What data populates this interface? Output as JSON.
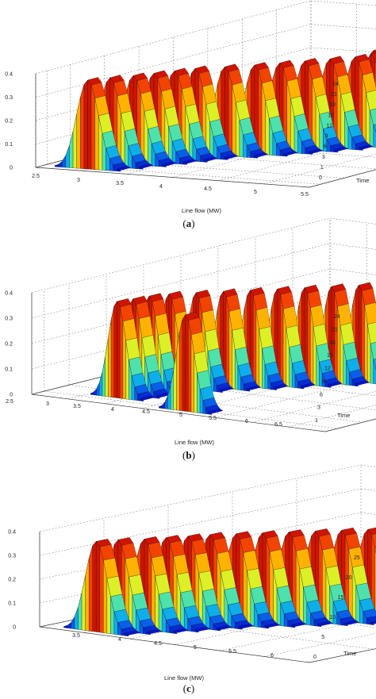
{
  "chart_data": [
    {
      "type": "surface-3d",
      "panel_label": "(a)",
      "panel_letter": "a",
      "xlabel": "Line flow (MW)",
      "ylabel": "Time",
      "zlabel": "",
      "xlim": [
        2.5,
        5.5
      ],
      "ylim": [
        0,
        24
      ],
      "zlim": [
        0,
        0.4
      ],
      "x_ticks": [
        "2.5",
        "3",
        "3.5",
        "4",
        "4.5",
        "5",
        "5.5"
      ],
      "y_ticks": [
        "0",
        "1",
        "3",
        "6",
        "9",
        "12",
        "15",
        "18",
        "21",
        "24"
      ],
      "z_ticks": [
        "0",
        "0.1",
        "0.2",
        "0.3",
        "0.4"
      ],
      "sigma": 0.12,
      "peaks": [
        {
          "time": 1,
          "mean": 3.0,
          "peak": 0.38
        },
        {
          "time": 2,
          "mean": 3.12,
          "peak": 0.38
        },
        {
          "time": 3,
          "mean": 3.25,
          "peak": 0.38
        },
        {
          "time": 4,
          "mean": 3.35,
          "peak": 0.38
        },
        {
          "time": 5,
          "mean": 3.45,
          "peak": 0.38
        },
        {
          "time": 6,
          "mean": 3.55,
          "peak": 0.38
        },
        {
          "time": 7,
          "mean": 3.75,
          "peak": 0.38
        },
        {
          "time": 8,
          "mean": 3.95,
          "peak": 0.38
        },
        {
          "time": 9,
          "mean": 4.1,
          "peak": 0.38
        },
        {
          "time": 10,
          "mean": 4.25,
          "peak": 0.38
        },
        {
          "time": 11,
          "mean": 4.4,
          "peak": 0.38
        },
        {
          "time": 12,
          "mean": 4.55,
          "peak": 0.38
        },
        {
          "time": 13,
          "mean": 4.6,
          "peak": 0.38
        },
        {
          "time": 14,
          "mean": 4.5,
          "peak": 0.38
        },
        {
          "time": 15,
          "mean": 4.7,
          "peak": 0.38
        },
        {
          "time": 16,
          "mean": 4.85,
          "peak": 0.38
        },
        {
          "time": 17,
          "mean": 4.95,
          "peak": 0.38
        },
        {
          "time": 18,
          "mean": 5.0,
          "peak": 0.38
        },
        {
          "time": 19,
          "mean": 5.1,
          "peak": 0.38
        },
        {
          "time": 20,
          "mean": 5.15,
          "peak": 0.38
        },
        {
          "time": 21,
          "mean": 5.0,
          "peak": 0.38
        },
        {
          "time": 22,
          "mean": 4.7,
          "peak": 0.38
        },
        {
          "time": 23,
          "mean": 4.3,
          "peak": 0.38
        },
        {
          "time": 24,
          "mean": 3.8,
          "peak": 0.38
        }
      ]
    },
    {
      "type": "surface-3d",
      "panel_label": "(b)",
      "panel_letter": "b",
      "xlabel": "Line flow (MW)",
      "ylabel": "Time",
      "zlabel": "",
      "xlim": [
        2.5,
        6.5
      ],
      "ylim": [
        0,
        24
      ],
      "zlim": [
        0,
        0.4
      ],
      "x_ticks": [
        "2.5",
        "3",
        "3.5",
        "4",
        "4.5",
        "5",
        "5.5",
        "6",
        "6.5"
      ],
      "y_ticks": [
        "1",
        "3",
        "6",
        "9",
        "12",
        "15",
        "18",
        "21",
        "24"
      ],
      "z_ticks": [
        "0",
        "0.1",
        "0.2",
        "0.3",
        "0.4"
      ],
      "sigma": 0.12,
      "peaks": [
        {
          "time": 1,
          "mean": 4.5,
          "peak": 0.38
        },
        {
          "time": 2,
          "mean": 3.4,
          "peak": 0.38
        },
        {
          "time": 3,
          "mean": 3.45,
          "peak": 0.38
        },
        {
          "time": 4,
          "mean": 3.5,
          "peak": 0.38
        },
        {
          "time": 5,
          "mean": 3.6,
          "peak": 0.38
        },
        {
          "time": 6,
          "mean": 3.8,
          "peak": 0.38
        },
        {
          "time": 7,
          "mean": 4.0,
          "peak": 0.38
        },
        {
          "time": 8,
          "mean": 4.2,
          "peak": 0.38
        },
        {
          "time": 9,
          "mean": 4.4,
          "peak": 0.38
        },
        {
          "time": 10,
          "mean": 4.6,
          "peak": 0.38
        },
        {
          "time": 11,
          "mean": 4.8,
          "peak": 0.38
        },
        {
          "time": 12,
          "mean": 5.0,
          "peak": 0.38
        },
        {
          "time": 13,
          "mean": 5.2,
          "peak": 0.38
        },
        {
          "time": 14,
          "mean": 5.4,
          "peak": 0.38
        },
        {
          "time": 15,
          "mean": 5.55,
          "peak": 0.38
        },
        {
          "time": 16,
          "mean": 5.7,
          "peak": 0.38
        },
        {
          "time": 17,
          "mean": 5.85,
          "peak": 0.38
        },
        {
          "time": 18,
          "mean": 6.0,
          "peak": 0.38
        },
        {
          "time": 19,
          "mean": 6.05,
          "peak": 0.38
        },
        {
          "time": 20,
          "mean": 6.1,
          "peak": 0.38
        },
        {
          "time": 21,
          "mean": 5.9,
          "peak": 0.38
        },
        {
          "time": 22,
          "mean": 5.6,
          "peak": 0.38
        },
        {
          "time": 23,
          "mean": 5.2,
          "peak": 0.38
        },
        {
          "time": 24,
          "mean": 4.6,
          "peak": 0.38
        }
      ]
    },
    {
      "type": "surface-3d",
      "panel_label": "(c)",
      "panel_letter": "c",
      "xlabel": "Line flow (MW)",
      "ylabel": "Time",
      "zlabel": "",
      "xlim": [
        3,
        6
      ],
      "ylim": [
        0,
        25
      ],
      "zlim": [
        0,
        0.4
      ],
      "x_ticks": [
        "3.5",
        "4",
        "4.5",
        "5",
        "5.5",
        "6"
      ],
      "y_ticks": [
        "0",
        "5",
        "10",
        "15",
        "20",
        "25"
      ],
      "z_ticks": [
        "0",
        "0.1",
        "0.2",
        "0.3",
        "0.4"
      ],
      "sigma": 0.12,
      "peaks": [
        {
          "time": 1,
          "mean": 3.55,
          "peak": 0.38
        },
        {
          "time": 2,
          "mean": 3.65,
          "peak": 0.38
        },
        {
          "time": 3,
          "mean": 3.8,
          "peak": 0.38
        },
        {
          "time": 4,
          "mean": 3.9,
          "peak": 0.38
        },
        {
          "time": 5,
          "mean": 4.0,
          "peak": 0.38
        },
        {
          "time": 6,
          "mean": 4.1,
          "peak": 0.38
        },
        {
          "time": 7,
          "mean": 4.25,
          "peak": 0.38
        },
        {
          "time": 8,
          "mean": 4.4,
          "peak": 0.38
        },
        {
          "time": 9,
          "mean": 4.55,
          "peak": 0.38
        },
        {
          "time": 10,
          "mean": 4.7,
          "peak": 0.38
        },
        {
          "time": 11,
          "mean": 4.85,
          "peak": 0.38
        },
        {
          "time": 12,
          "mean": 5.0,
          "peak": 0.38
        },
        {
          "time": 13,
          "mean": 5.15,
          "peak": 0.38
        },
        {
          "time": 14,
          "mean": 5.25,
          "peak": 0.38
        },
        {
          "time": 15,
          "mean": 5.2,
          "peak": 0.38
        },
        {
          "time": 16,
          "mean": 5.3,
          "peak": 0.38
        },
        {
          "time": 17,
          "mean": 5.4,
          "peak": 0.38
        },
        {
          "time": 18,
          "mean": 5.5,
          "peak": 0.38
        },
        {
          "time": 19,
          "mean": 5.55,
          "peak": 0.38
        },
        {
          "time": 20,
          "mean": 5.6,
          "peak": 0.38
        },
        {
          "time": 21,
          "mean": 5.55,
          "peak": 0.38
        },
        {
          "time": 22,
          "mean": 5.3,
          "peak": 0.38
        },
        {
          "time": 23,
          "mean": 4.95,
          "peak": 0.38
        },
        {
          "time": 24,
          "mean": 4.6,
          "peak": 0.38
        }
      ]
    }
  ],
  "colors": {
    "colormap": [
      "#0000c8",
      "#0a6ef0",
      "#10d2e6",
      "#5ae6a0",
      "#c8f03c",
      "#fff000",
      "#ffb400",
      "#ff6400",
      "#e61e00",
      "#a00000"
    ],
    "grid": "#7a7a7a",
    "box": "#333333",
    "text": "#222222"
  }
}
